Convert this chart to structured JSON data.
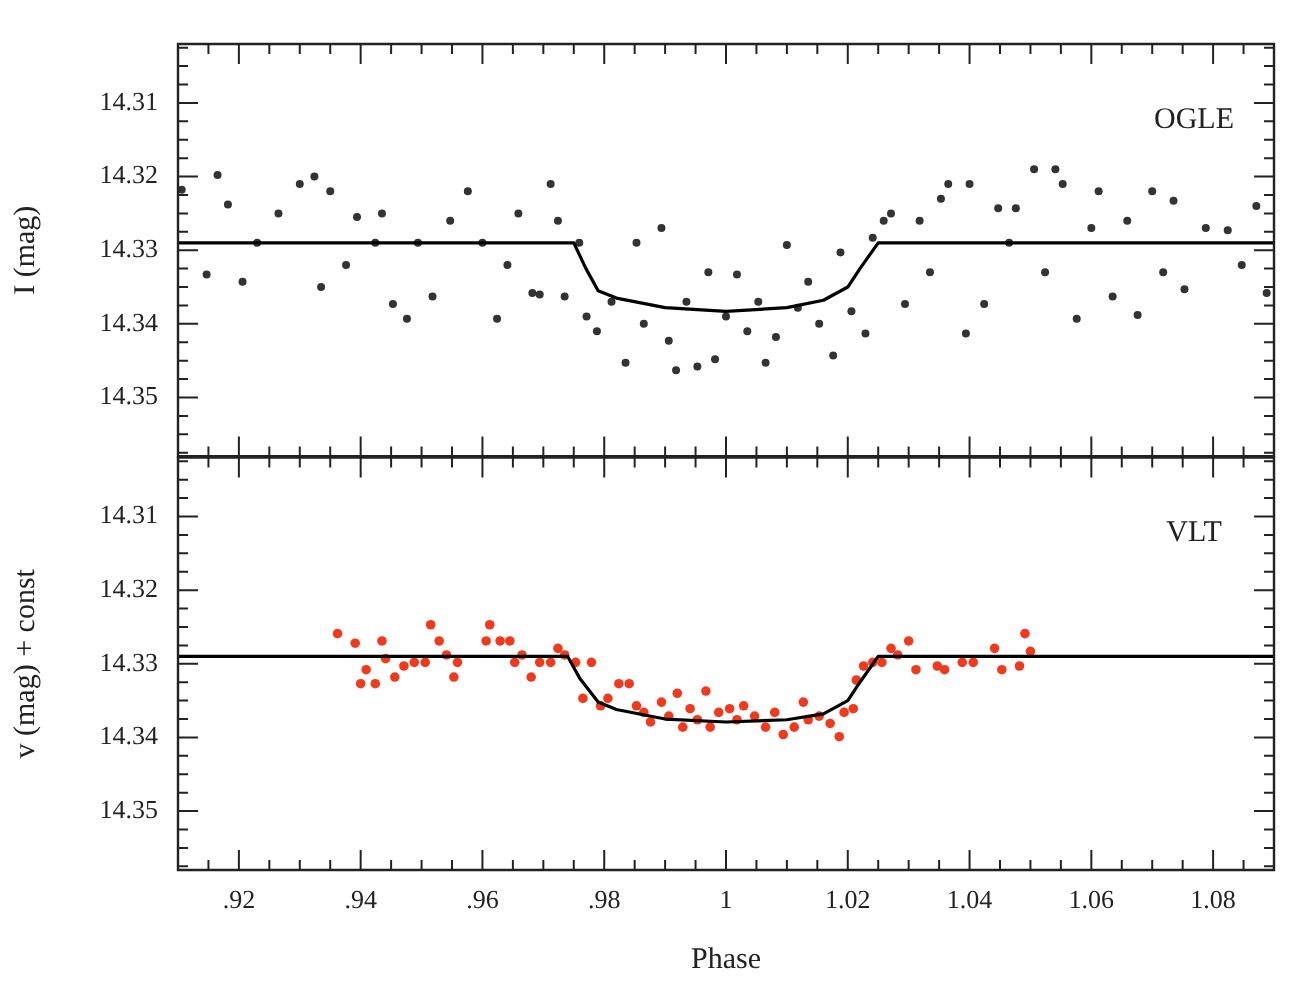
{
  "chart_data": [
    {
      "type": "scatter",
      "ylabel": "I (mag)",
      "annotations": [
        "OGLE"
      ],
      "grid": false,
      "legend": false,
      "tick_labels": "y",
      "xlim": [
        0.91,
        1.09
      ],
      "ylim": [
        14.358,
        14.302
      ],
      "xticks": [
        {
          "value": 0.915,
          "label": null
        },
        0.92,
        {
          "value": 0.925,
          "label": null
        },
        {
          "value": 0.93,
          "label": null
        },
        {
          "value": 0.935,
          "label": null
        },
        0.94,
        {
          "value": 0.945,
          "label": null
        },
        {
          "value": 0.95,
          "label": null
        },
        {
          "value": 0.955,
          "label": null
        },
        0.96,
        {
          "value": 0.965,
          "label": null
        },
        {
          "value": 0.97,
          "label": null
        },
        {
          "value": 0.975,
          "label": null
        },
        0.98,
        {
          "value": 0.985,
          "label": null
        },
        {
          "value": 0.99,
          "label": null
        },
        {
          "value": 0.995,
          "label": null
        },
        1,
        {
          "value": 1.005,
          "label": null
        },
        {
          "value": 1.01,
          "label": null
        },
        {
          "value": 1.015,
          "label": null
        },
        1.02,
        {
          "value": 1.025,
          "label": null
        },
        {
          "value": 1.03,
          "label": null
        },
        {
          "value": 1.035,
          "label": null
        },
        1.04,
        {
          "value": 1.045,
          "label": null
        },
        {
          "value": 1.05,
          "label": null
        },
        {
          "value": 1.055,
          "label": null
        },
        1.06,
        {
          "value": 1.065,
          "label": null
        },
        {
          "value": 1.07,
          "label": null
        },
        {
          "value": 1.075,
          "label": null
        },
        1.08,
        {
          "value": 1.085,
          "label": null
        }
      ],
      "yticks": [
        {
          "value": 14.3025,
          "label": null
        },
        {
          "value": 14.305,
          "label": null
        },
        {
          "value": 14.3075,
          "label": null
        },
        14.31,
        {
          "value": 14.3125,
          "label": null
        },
        {
          "value": 14.315,
          "label": null
        },
        {
          "value": 14.3175,
          "label": null
        },
        14.32,
        {
          "value": 14.3225,
          "label": null
        },
        {
          "value": 14.325,
          "label": null
        },
        {
          "value": 14.3275,
          "label": null
        },
        14.33,
        {
          "value": 14.3325,
          "label": null
        },
        {
          "value": 14.335,
          "label": null
        },
        {
          "value": 14.3375,
          "label": null
        },
        14.34,
        {
          "value": 14.3425,
          "label": null
        },
        {
          "value": 14.345,
          "label": null
        },
        {
          "value": 14.3475,
          "label": null
        },
        14.35,
        {
          "value": 14.3525,
          "label": null
        },
        {
          "value": 14.355,
          "label": null
        },
        {
          "value": 14.3575,
          "label": null
        }
      ],
      "series": [
        {
          "type": "scatter",
          "color": "#333333",
          "marker": "circle",
          "x": [
            0.9106,
            0.9165,
            0.9182,
            0.9147,
            0.9206,
            0.923,
            0.9265,
            0.93,
            0.9324,
            0.9335,
            0.935,
            0.9376,
            0.9394,
            0.9424,
            0.9435,
            0.9453,
            0.9476,
            0.9494,
            0.9518,
            0.9547,
            0.9576,
            0.96,
            0.9624,
            0.9641,
            0.9659,
            0.9682,
            0.9694,
            0.9712,
            0.9724,
            0.9735,
            0.9759,
            0.9771,
            0.9788,
            0.9812,
            0.9835,
            0.9853,
            0.9865,
            0.9894,
            0.9906,
            0.9918,
            0.9935,
            0.9953,
            0.9971,
            0.9982,
            1.0,
            1.0018,
            1.0035,
            1.0053,
            1.0065,
            1.0082,
            1.01,
            1.0118,
            1.0135,
            1.0153,
            1.0176,
            1.0188,
            1.0206,
            1.0229,
            1.0241,
            1.0259,
            1.0271,
            1.0294,
            1.0318,
            1.0335,
            1.0353,
            1.0365,
            1.0394,
            1.04,
            1.0424,
            1.0447,
            1.0465,
            1.0476,
            1.0506,
            1.0524,
            1.0541,
            1.0553,
            1.0576,
            1.06,
            1.0612,
            1.0635,
            1.0659,
            1.0676,
            1.07,
            1.0718,
            1.0735,
            1.0753,
            1.0788,
            1.0824,
            1.0847,
            1.0871,
            1.0888
          ],
          "values": [
            14.3218,
            14.3198,
            14.3238,
            14.3333,
            14.3343,
            14.329,
            14.325,
            14.321,
            14.32,
            14.335,
            14.322,
            14.332,
            14.3255,
            14.329,
            14.325,
            14.3373,
            14.3393,
            14.329,
            14.3363,
            14.326,
            14.322,
            14.329,
            14.3393,
            14.332,
            14.325,
            14.3358,
            14.336,
            14.321,
            14.326,
            14.3363,
            14.329,
            14.339,
            14.341,
            14.337,
            14.3453,
            14.329,
            14.34,
            14.327,
            14.3423,
            14.3463,
            14.337,
            14.3458,
            14.333,
            14.3448,
            14.339,
            14.3333,
            14.341,
            14.337,
            14.3453,
            14.3418,
            14.3293,
            14.3378,
            14.3343,
            14.34,
            14.3443,
            14.3303,
            14.3383,
            14.3413,
            14.3283,
            14.326,
            14.325,
            14.3373,
            14.326,
            14.333,
            14.323,
            14.321,
            14.3413,
            14.321,
            14.3373,
            14.3243,
            14.329,
            14.3243,
            14.319,
            14.333,
            14.319,
            14.321,
            14.3393,
            14.327,
            14.322,
            14.3363,
            14.326,
            14.3388,
            14.322,
            14.333,
            14.3233,
            14.3353,
            14.327,
            14.3273,
            14.332,
            14.324,
            14.3358
          ]
        },
        {
          "type": "line",
          "color": "#000000",
          "marker": "none",
          "x": [
            0.91,
            0.975,
            0.977,
            0.979,
            0.982,
            0.99,
            1.0,
            1.01,
            1.016,
            1.02,
            1.022,
            1.025,
            1.09
          ],
          "values": [
            14.329,
            14.329,
            14.3325,
            14.3355,
            14.3365,
            14.3378,
            14.3383,
            14.3378,
            14.3368,
            14.335,
            14.3325,
            14.329,
            14.329
          ]
        }
      ]
    },
    {
      "type": "scatter",
      "ylabel": "v (mag) + const",
      "xlabel": "Phase",
      "annotations": [
        "VLT"
      ],
      "grid": false,
      "legend": false,
      "xlim": [
        0.91,
        1.09
      ],
      "ylim": [
        14.358,
        14.302
      ],
      "xticks": [
        {
          "value": 0.915,
          "label": null
        },
        {
          "value": 0.92,
          "label": ".92"
        },
        {
          "value": 0.925,
          "label": null
        },
        {
          "value": 0.93,
          "label": null
        },
        {
          "value": 0.935,
          "label": null
        },
        {
          "value": 0.94,
          "label": ".94"
        },
        {
          "value": 0.945,
          "label": null
        },
        {
          "value": 0.95,
          "label": null
        },
        {
          "value": 0.955,
          "label": null
        },
        {
          "value": 0.96,
          "label": ".96"
        },
        {
          "value": 0.965,
          "label": null
        },
        {
          "value": 0.97,
          "label": null
        },
        {
          "value": 0.975,
          "label": null
        },
        {
          "value": 0.98,
          "label": ".98"
        },
        {
          "value": 0.985,
          "label": null
        },
        {
          "value": 0.99,
          "label": null
        },
        {
          "value": 0.995,
          "label": null
        },
        1,
        {
          "value": 1.005,
          "label": null
        },
        {
          "value": 1.01,
          "label": null
        },
        {
          "value": 1.015,
          "label": null
        },
        1.02,
        {
          "value": 1.025,
          "label": null
        },
        {
          "value": 1.03,
          "label": null
        },
        {
          "value": 1.035,
          "label": null
        },
        1.04,
        {
          "value": 1.045,
          "label": null
        },
        {
          "value": 1.05,
          "label": null
        },
        {
          "value": 1.055,
          "label": null
        },
        1.06,
        {
          "value": 1.065,
          "label": null
        },
        {
          "value": 1.07,
          "label": null
        },
        {
          "value": 1.075,
          "label": null
        },
        1.08,
        {
          "value": 1.085,
          "label": null
        }
      ],
      "yticks": [
        {
          "value": 14.3025,
          "label": null
        },
        {
          "value": 14.305,
          "label": null
        },
        {
          "value": 14.3075,
          "label": null
        },
        14.31,
        {
          "value": 14.3125,
          "label": null
        },
        {
          "value": 14.315,
          "label": null
        },
        {
          "value": 14.3175,
          "label": null
        },
        14.32,
        {
          "value": 14.3225,
          "label": null
        },
        {
          "value": 14.325,
          "label": null
        },
        {
          "value": 14.3275,
          "label": null
        },
        14.33,
        {
          "value": 14.3325,
          "label": null
        },
        {
          "value": 14.335,
          "label": null
        },
        {
          "value": 14.3375,
          "label": null
        },
        14.34,
        {
          "value": 14.3425,
          "label": null
        },
        {
          "value": 14.345,
          "label": null
        },
        {
          "value": 14.3475,
          "label": null
        },
        14.35,
        {
          "value": 14.3525,
          "label": null
        },
        {
          "value": 14.355,
          "label": null
        },
        {
          "value": 14.3575,
          "label": null
        }
      ],
      "series": [
        {
          "type": "scatter",
          "color": "#f03a1e",
          "marker": "circle",
          "x": [
            0.9362,
            0.9391,
            0.94,
            0.9409,
            0.9424,
            0.9435,
            0.9441,
            0.9456,
            0.9471,
            0.9488,
            0.9506,
            0.9515,
            0.9529,
            0.9541,
            0.9553,
            0.9559,
            0.9606,
            0.9612,
            0.9629,
            0.9645,
            0.9653,
            0.9665,
            0.968,
            0.9694,
            0.9712,
            0.9724,
            0.9735,
            0.9753,
            0.9765,
            0.9779,
            0.9794,
            0.9806,
            0.9824,
            0.9841,
            0.9853,
            0.9865,
            0.9876,
            0.9894,
            0.9906,
            0.992,
            0.9929,
            0.9941,
            0.9953,
            0.9967,
            0.9974,
            0.9988,
            1.0006,
            1.0018,
            1.0029,
            1.0047,
            1.0065,
            1.008,
            1.0094,
            1.0112,
            1.0127,
            1.0135,
            1.0153,
            1.0171,
            1.0186,
            1.0194,
            1.0209,
            1.0214,
            1.0226,
            1.0241,
            1.0256,
            1.0271,
            1.0282,
            1.03,
            1.0312,
            1.0347,
            1.0359,
            1.0388,
            1.0406,
            1.0441,
            1.0453,
            1.0482,
            1.0491,
            1.05
          ],
          "values": [
            14.3259,
            14.3272,
            14.3327,
            14.3308,
            14.3327,
            14.3269,
            14.3293,
            14.3318,
            14.3303,
            14.3298,
            14.3298,
            14.3247,
            14.3269,
            14.3288,
            14.3318,
            14.3298,
            14.3269,
            14.3247,
            14.3269,
            14.3269,
            14.3298,
            14.3288,
            14.3318,
            14.3298,
            14.3298,
            14.3279,
            14.3288,
            14.3298,
            14.3347,
            14.3298,
            14.3357,
            14.3347,
            14.3327,
            14.3327,
            14.3357,
            14.3366,
            14.3379,
            14.3352,
            14.3371,
            14.334,
            14.3386,
            14.3361,
            14.3376,
            14.3337,
            14.3386,
            14.3366,
            14.3361,
            14.3376,
            14.3357,
            14.3371,
            14.3386,
            14.3366,
            14.3396,
            14.3386,
            14.3352,
            14.3376,
            14.3371,
            14.3381,
            14.3399,
            14.3366,
            14.3361,
            14.3322,
            14.3303,
            14.3298,
            14.3298,
            14.3279,
            14.3288,
            14.3269,
            14.3308,
            14.3303,
            14.3308,
            14.3298,
            14.3298,
            14.3279,
            14.3308,
            14.3303,
            14.3259,
            14.3283
          ]
        },
        {
          "type": "line",
          "color": "#000000",
          "marker": "none",
          "x": [
            0.91,
            0.974,
            0.976,
            0.979,
            0.982,
            0.99,
            1.0,
            1.01,
            1.016,
            1.02,
            1.022,
            1.025,
            1.09
          ],
          "values": [
            14.329,
            14.329,
            14.332,
            14.3352,
            14.3362,
            14.3375,
            14.3379,
            14.3376,
            14.3368,
            14.335,
            14.3325,
            14.329,
            14.329
          ]
        }
      ]
    }
  ]
}
